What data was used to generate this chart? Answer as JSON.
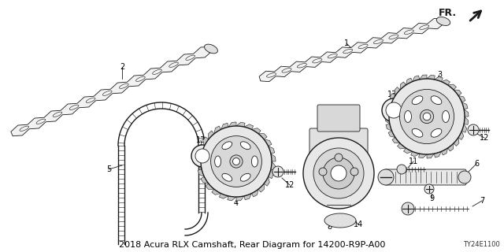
{
  "title": "2018 Acura RLX Camshaft, Rear Diagram for 14200-R9P-A00",
  "background_color": "#ffffff",
  "diagram_code": "TY24E1100",
  "line_color": "#1a1a1a",
  "text_color": "#000000",
  "font_size": 7,
  "title_font_size": 8
}
